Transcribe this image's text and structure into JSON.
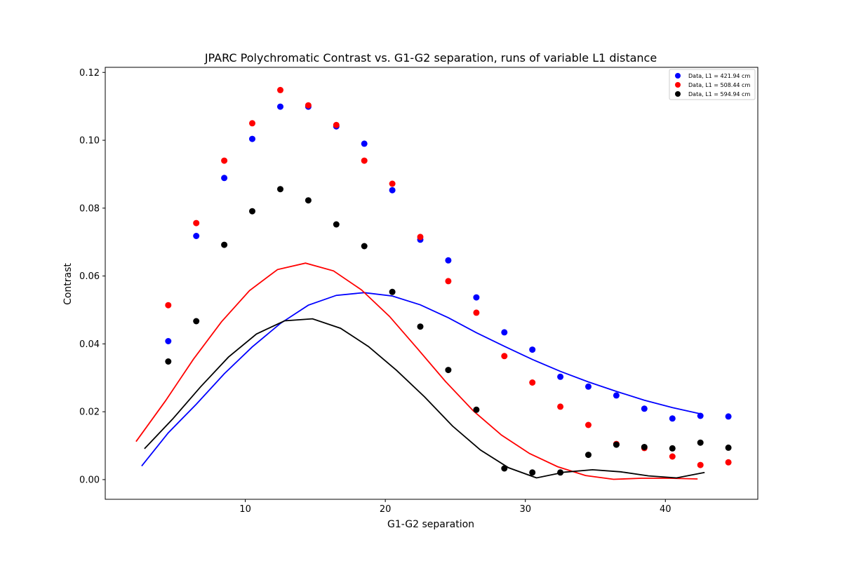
{
  "chart_data": {
    "type": "scatter",
    "title": "JPARC Polychromatic Contrast vs. G1-G2 separation, runs of variable L1 distance",
    "xlabel": "G1-G2 separation",
    "ylabel": "Contrast",
    "xlim": [
      0.0,
      46.6
    ],
    "ylim": [
      -0.0058,
      0.1215
    ],
    "xticks": [
      10,
      20,
      30,
      40
    ],
    "yticks": [
      0.0,
      0.02,
      0.04,
      0.06,
      0.08,
      0.1,
      0.12
    ],
    "ytick_labels": [
      "0.00",
      "0.02",
      "0.04",
      "0.06",
      "0.08",
      "0.10",
      "0.12"
    ],
    "grid": false,
    "legend_position": "top-right",
    "series": [
      {
        "name": "Data, L1 = 421.94 cm",
        "color": "#0000ff",
        "x": [
          4.5,
          6.5,
          8.5,
          10.5,
          12.5,
          14.5,
          16.5,
          18.5,
          20.5,
          22.5,
          24.5,
          26.5,
          28.5,
          30.5,
          32.5,
          34.5,
          36.5,
          38.5,
          40.5,
          42.5,
          44.5
        ],
        "y": [
          0.0408,
          0.0718,
          0.0889,
          0.1004,
          0.1099,
          0.1099,
          0.1041,
          0.099,
          0.0853,
          0.0707,
          0.0646,
          0.0537,
          0.0434,
          0.0383,
          0.0303,
          0.0274,
          0.0248,
          0.0209,
          0.018,
          0.0188,
          0.0186
        ]
      },
      {
        "name": "Data, L1 = 508.44 cm",
        "color": "#ff0000",
        "x": [
          4.5,
          6.5,
          8.5,
          10.5,
          12.5,
          14.5,
          16.5,
          18.5,
          20.5,
          22.5,
          24.5,
          26.5,
          28.5,
          30.5,
          32.5,
          34.5,
          36.5,
          38.5,
          40.5,
          42.5,
          44.5
        ],
        "y": [
          0.0514,
          0.0756,
          0.094,
          0.105,
          0.1148,
          0.1103,
          0.1045,
          0.094,
          0.0872,
          0.0715,
          0.0585,
          0.0492,
          0.0364,
          0.0286,
          0.0215,
          0.0161,
          0.0105,
          0.0093,
          0.0068,
          0.0043,
          0.0051
        ]
      },
      {
        "name": "Data, L1 = 594.94 cm",
        "color": "#000000",
        "x": [
          4.5,
          6.5,
          8.5,
          10.5,
          12.5,
          14.5,
          16.5,
          18.5,
          20.5,
          22.5,
          24.5,
          26.5,
          28.5,
          30.5,
          32.5,
          34.5,
          36.5,
          38.5,
          40.5,
          42.5,
          44.5
        ],
        "y": [
          0.0348,
          0.0467,
          0.0692,
          0.0791,
          0.0856,
          0.0823,
          0.0752,
          0.0688,
          0.0553,
          0.0451,
          0.0323,
          0.0206,
          0.0033,
          0.0021,
          0.0021,
          0.0073,
          0.0103,
          0.0096,
          0.0092,
          0.0109,
          0.0094
        ]
      }
    ],
    "lines": [
      {
        "color": "#0000ff",
        "x": [
          2.6,
          4.5,
          6.5,
          8.5,
          10.5,
          12.5,
          14.5,
          16.5,
          18.5,
          20.5,
          22.5,
          24.5,
          26.5,
          28.5,
          30.5,
          32.5,
          34.5,
          36.5,
          38.5,
          40.5,
          42.5
        ],
        "y": [
          0.004,
          0.0138,
          0.0222,
          0.0312,
          0.0391,
          0.046,
          0.0514,
          0.0543,
          0.0551,
          0.0541,
          0.0515,
          0.0477,
          0.0433,
          0.0393,
          0.0354,
          0.0319,
          0.0288,
          0.026,
          0.0234,
          0.0212,
          0.0194
        ]
      },
      {
        "color": "#ff0000",
        "x": [
          2.2,
          4.3,
          6.3,
          8.3,
          10.3,
          12.3,
          14.3,
          16.3,
          18.3,
          20.3,
          22.3,
          24.3,
          26.3,
          28.3,
          30.3,
          32.3,
          34.3,
          36.3,
          38.3,
          40.3,
          42.3
        ],
        "y": [
          0.0112,
          0.0232,
          0.0355,
          0.0465,
          0.0557,
          0.0619,
          0.0638,
          0.0615,
          0.0559,
          0.0481,
          0.0386,
          0.0289,
          0.0202,
          0.0131,
          0.0077,
          0.0038,
          0.0012,
          0.0001,
          0.0004,
          0.0004,
          0.0002
        ]
      },
      {
        "color": "#000000",
        "x": [
          2.8,
          4.8,
          6.8,
          8.8,
          10.8,
          12.8,
          14.8,
          16.8,
          18.8,
          20.8,
          22.8,
          24.8,
          26.8,
          28.8,
          30.8,
          32.8,
          34.8,
          36.8,
          38.8,
          40.8,
          42.8
        ],
        "y": [
          0.0091,
          0.0178,
          0.0273,
          0.0361,
          0.0429,
          0.0468,
          0.0474,
          0.0446,
          0.0392,
          0.0322,
          0.0244,
          0.0158,
          0.0087,
          0.0035,
          0.0005,
          0.0022,
          0.0029,
          0.0023,
          0.0011,
          0.0005,
          0.0021
        ]
      }
    ]
  }
}
